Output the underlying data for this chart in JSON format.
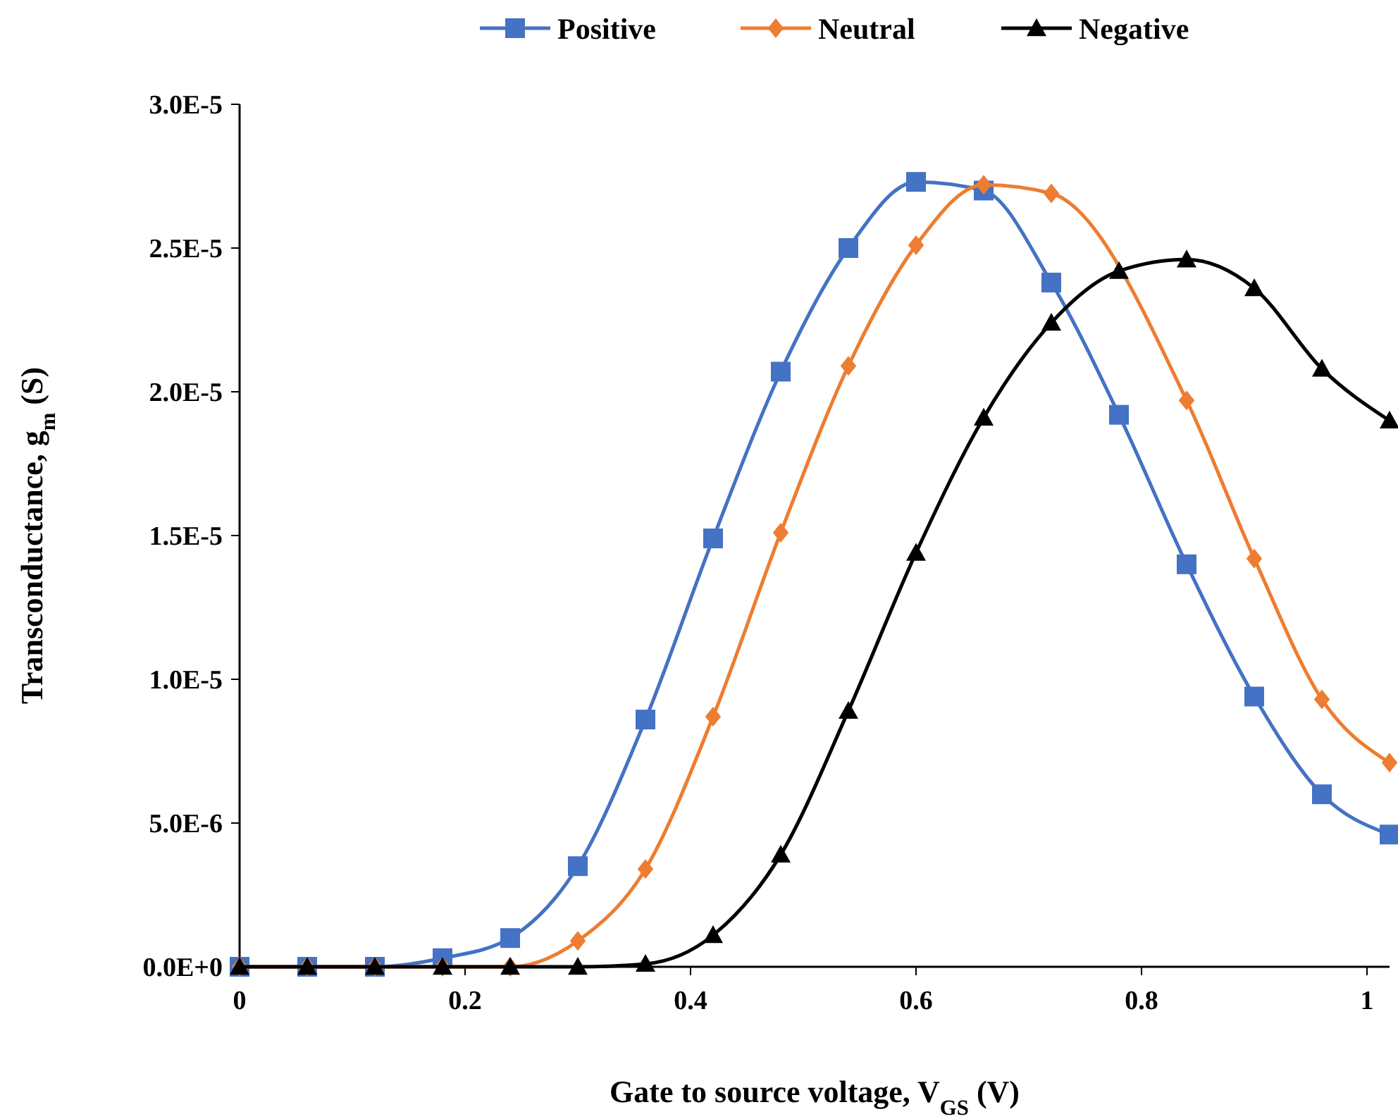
{
  "chart_data": {
    "type": "line",
    "xlabel": "Gate to source voltage, V$_{GS}$ (V)",
    "ylabel": "Transconductance, g$_{m}$ (S)",
    "x": [
      0,
      0.06,
      0.12,
      0.18,
      0.24,
      0.3,
      0.36,
      0.42,
      0.48,
      0.54,
      0.6,
      0.66,
      0.72,
      0.78,
      0.84,
      0.9,
      0.96,
      1.02
    ],
    "series": [
      {
        "name": "Positive",
        "color": "#4472c4",
        "marker": "square",
        "values": [
          0,
          0,
          0,
          3e-07,
          1e-06,
          3.5e-06,
          8.6e-06,
          1.49e-05,
          2.07e-05,
          2.5e-05,
          2.73e-05,
          2.7e-05,
          2.38e-05,
          1.92e-05,
          1.4e-05,
          9.4e-06,
          6e-06,
          4.6e-06
        ]
      },
      {
        "name": "Neutral",
        "color": "#ed7d31",
        "marker": "diamond",
        "values": [
          0,
          0,
          0,
          0,
          0,
          9e-07,
          3.4e-06,
          8.7e-06,
          1.51e-05,
          2.09e-05,
          2.51e-05,
          2.72e-05,
          2.69e-05,
          null,
          1.97e-05,
          1.42e-05,
          9.3e-06,
          7.1e-06
        ]
      },
      {
        "name": "Negative",
        "color": "#000000",
        "marker": "triangle",
        "values": [
          0,
          0,
          0,
          0,
          0,
          0,
          1e-07,
          1.1e-06,
          3.9e-06,
          8.9e-06,
          1.44e-05,
          1.91e-05,
          2.24e-05,
          2.42e-05,
          2.46e-05,
          2.36e-05,
          2.08e-05,
          1.9e-05
        ]
      }
    ],
    "xlim": [
      0,
      1.02
    ],
    "xticks": [
      0,
      0.2,
      0.4,
      0.6,
      0.8,
      1
    ],
    "ylim": [
      0,
      3e-05
    ],
    "yticks": [
      {
        "value": 0,
        "label": "0.0E+0"
      },
      {
        "value": 5e-06,
        "label": "5.0E-6"
      },
      {
        "value": 1e-05,
        "label": "1.0E-5"
      },
      {
        "value": 1.5e-05,
        "label": "1.5E-5"
      },
      {
        "value": 2e-05,
        "label": "2.0E-5"
      },
      {
        "value": 2.5e-05,
        "label": "2.5E-5"
      },
      {
        "value": 3e-05,
        "label": "3.0E-5"
      }
    ],
    "grid": false,
    "legend": "top",
    "line_style": "solid"
  }
}
